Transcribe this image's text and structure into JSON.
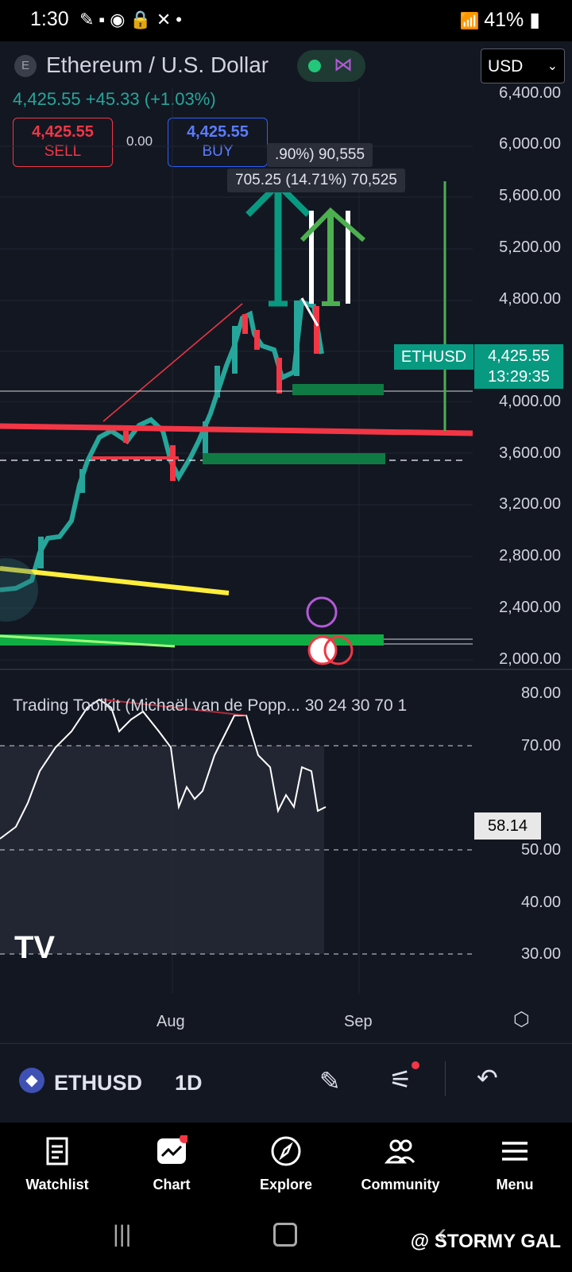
{
  "status_bar": {
    "time": "1:30",
    "battery": "41%"
  },
  "header": {
    "symbol_icon": "E",
    "title": "Ethereum / U.S. Dollar",
    "currency": "USD",
    "price_line": "4,425.55  +45.33 (+1.03%)",
    "sell_price": "4,425.55",
    "sell_label": "SELL",
    "buy_price": "4,425.55",
    "buy_label": "BUY",
    "spread": "0.00"
  },
  "overlays": {
    "measure_top": ".90%) 90,555",
    "measure_main": "705.25 (14.71%) 70,525"
  },
  "price_axis": [
    "6,400.00",
    "6,000.00",
    "5,600.00",
    "5,200.00",
    "4,800.00",
    "4,000.00",
    "3,600.00",
    "3,200.00",
    "2,800.00",
    "2,400.00",
    "2,000.00"
  ],
  "price_badge": {
    "symbol": "ETHUSD",
    "price": "4,425.55",
    "countdown": "13:29:35"
  },
  "indicator": {
    "label": "Trading Toolkit (Michaël van de Popp...  30 24 30 70 1",
    "axis": [
      "80.00",
      "70.00",
      "50.00",
      "40.00",
      "30.00"
    ],
    "value": "58.14"
  },
  "time_axis": [
    "Aug",
    "Sep"
  ],
  "toolbar": {
    "symbol": "ETHUSD",
    "timeframe": "1D"
  },
  "nav": [
    {
      "label": "Watchlist",
      "icon": "watchlist-icon"
    },
    {
      "label": "Chart",
      "icon": "chart-icon"
    },
    {
      "label": "Explore",
      "icon": "compass-icon"
    },
    {
      "label": "Community",
      "icon": "community-icon"
    },
    {
      "label": "Menu",
      "icon": "menu-icon"
    }
  ],
  "watermark": "@ STORMY GAL",
  "colors": {
    "up": "#26a69a",
    "down": "#f23645",
    "accent": "#089981",
    "bg": "#131722"
  }
}
